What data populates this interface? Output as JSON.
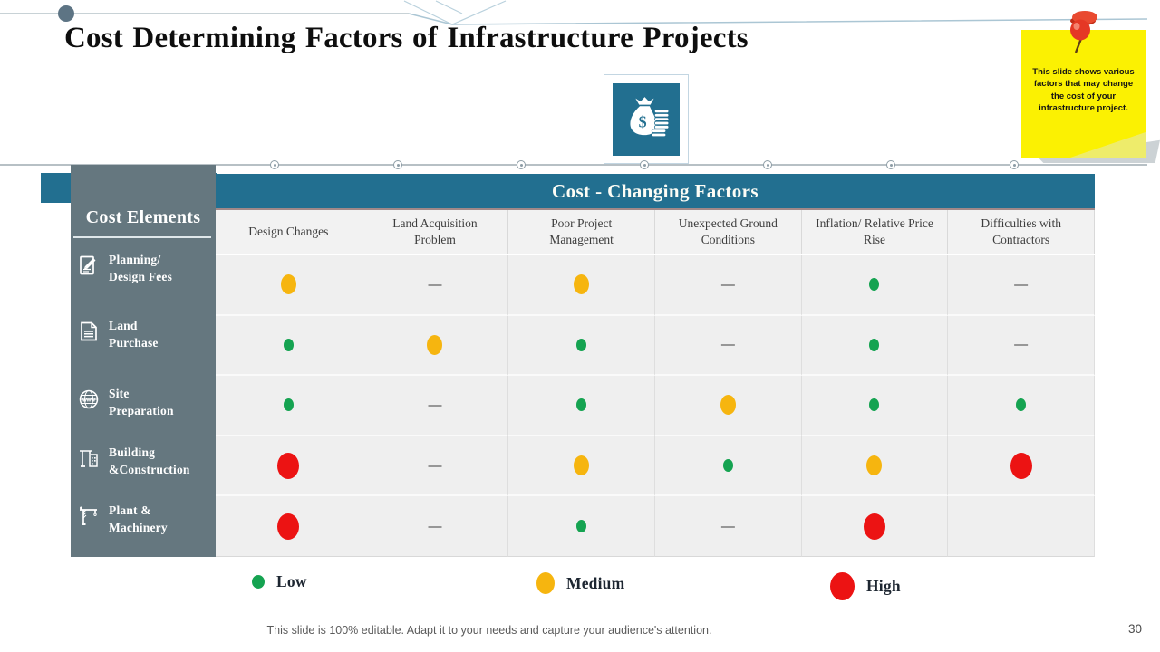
{
  "slide": {
    "title": "Cost Determining Factors of Infrastructure Projects",
    "sticky_note": "This slide shows various factors that may change the cost of your infrastructure project.",
    "footer": "This slide is 100% editable. Adapt it to your needs and capture your audience's attention.",
    "page_number": "30"
  },
  "table": {
    "header": "Cost - Changing Factors",
    "row_header_title": "Cost Elements",
    "columns": [
      "Design Changes",
      "Land Acquisition Problem",
      "Poor Project Management",
      "Unexpected Ground Conditions",
      "Inflation/ Relative Price Rise",
      "Difficulties with Contractors"
    ],
    "rows": [
      {
        "line1": "Planning/",
        "line2": "Design Fees",
        "icon": "document-edit-icon",
        "values": [
          "medium",
          "none",
          "medium",
          "none",
          "low",
          "none"
        ]
      },
      {
        "line1": "Land",
        "line2": "Purchase",
        "icon": "deed-document-icon",
        "values": [
          "low",
          "medium",
          "low",
          "none",
          "low",
          "none"
        ]
      },
      {
        "line1": "Site",
        "line2": "Preparation",
        "icon": "globe-icon",
        "values": [
          "low",
          "none",
          "low",
          "medium",
          "low",
          "low"
        ]
      },
      {
        "line1": "Building",
        "line2": "&Construction",
        "icon": "crane-building-icon",
        "values": [
          "high",
          "none",
          "medium",
          "low",
          "medium",
          "high"
        ]
      },
      {
        "line1": "Plant &",
        "line2": "Machinery",
        "icon": "tower-crane-icon",
        "values": [
          "high",
          "none",
          "low",
          "none",
          "high",
          "empty"
        ]
      }
    ]
  },
  "legend": [
    {
      "label": "Low",
      "level": "low"
    },
    {
      "label": "Medium",
      "level": "medium"
    },
    {
      "label": "High",
      "level": "high"
    }
  ],
  "colors": {
    "teal": "#226f90",
    "sidebar": "#65777f",
    "low": "#15a351",
    "medium": "#f6b50f",
    "high": "#ec1313",
    "note_yellow": "#fbf102"
  }
}
